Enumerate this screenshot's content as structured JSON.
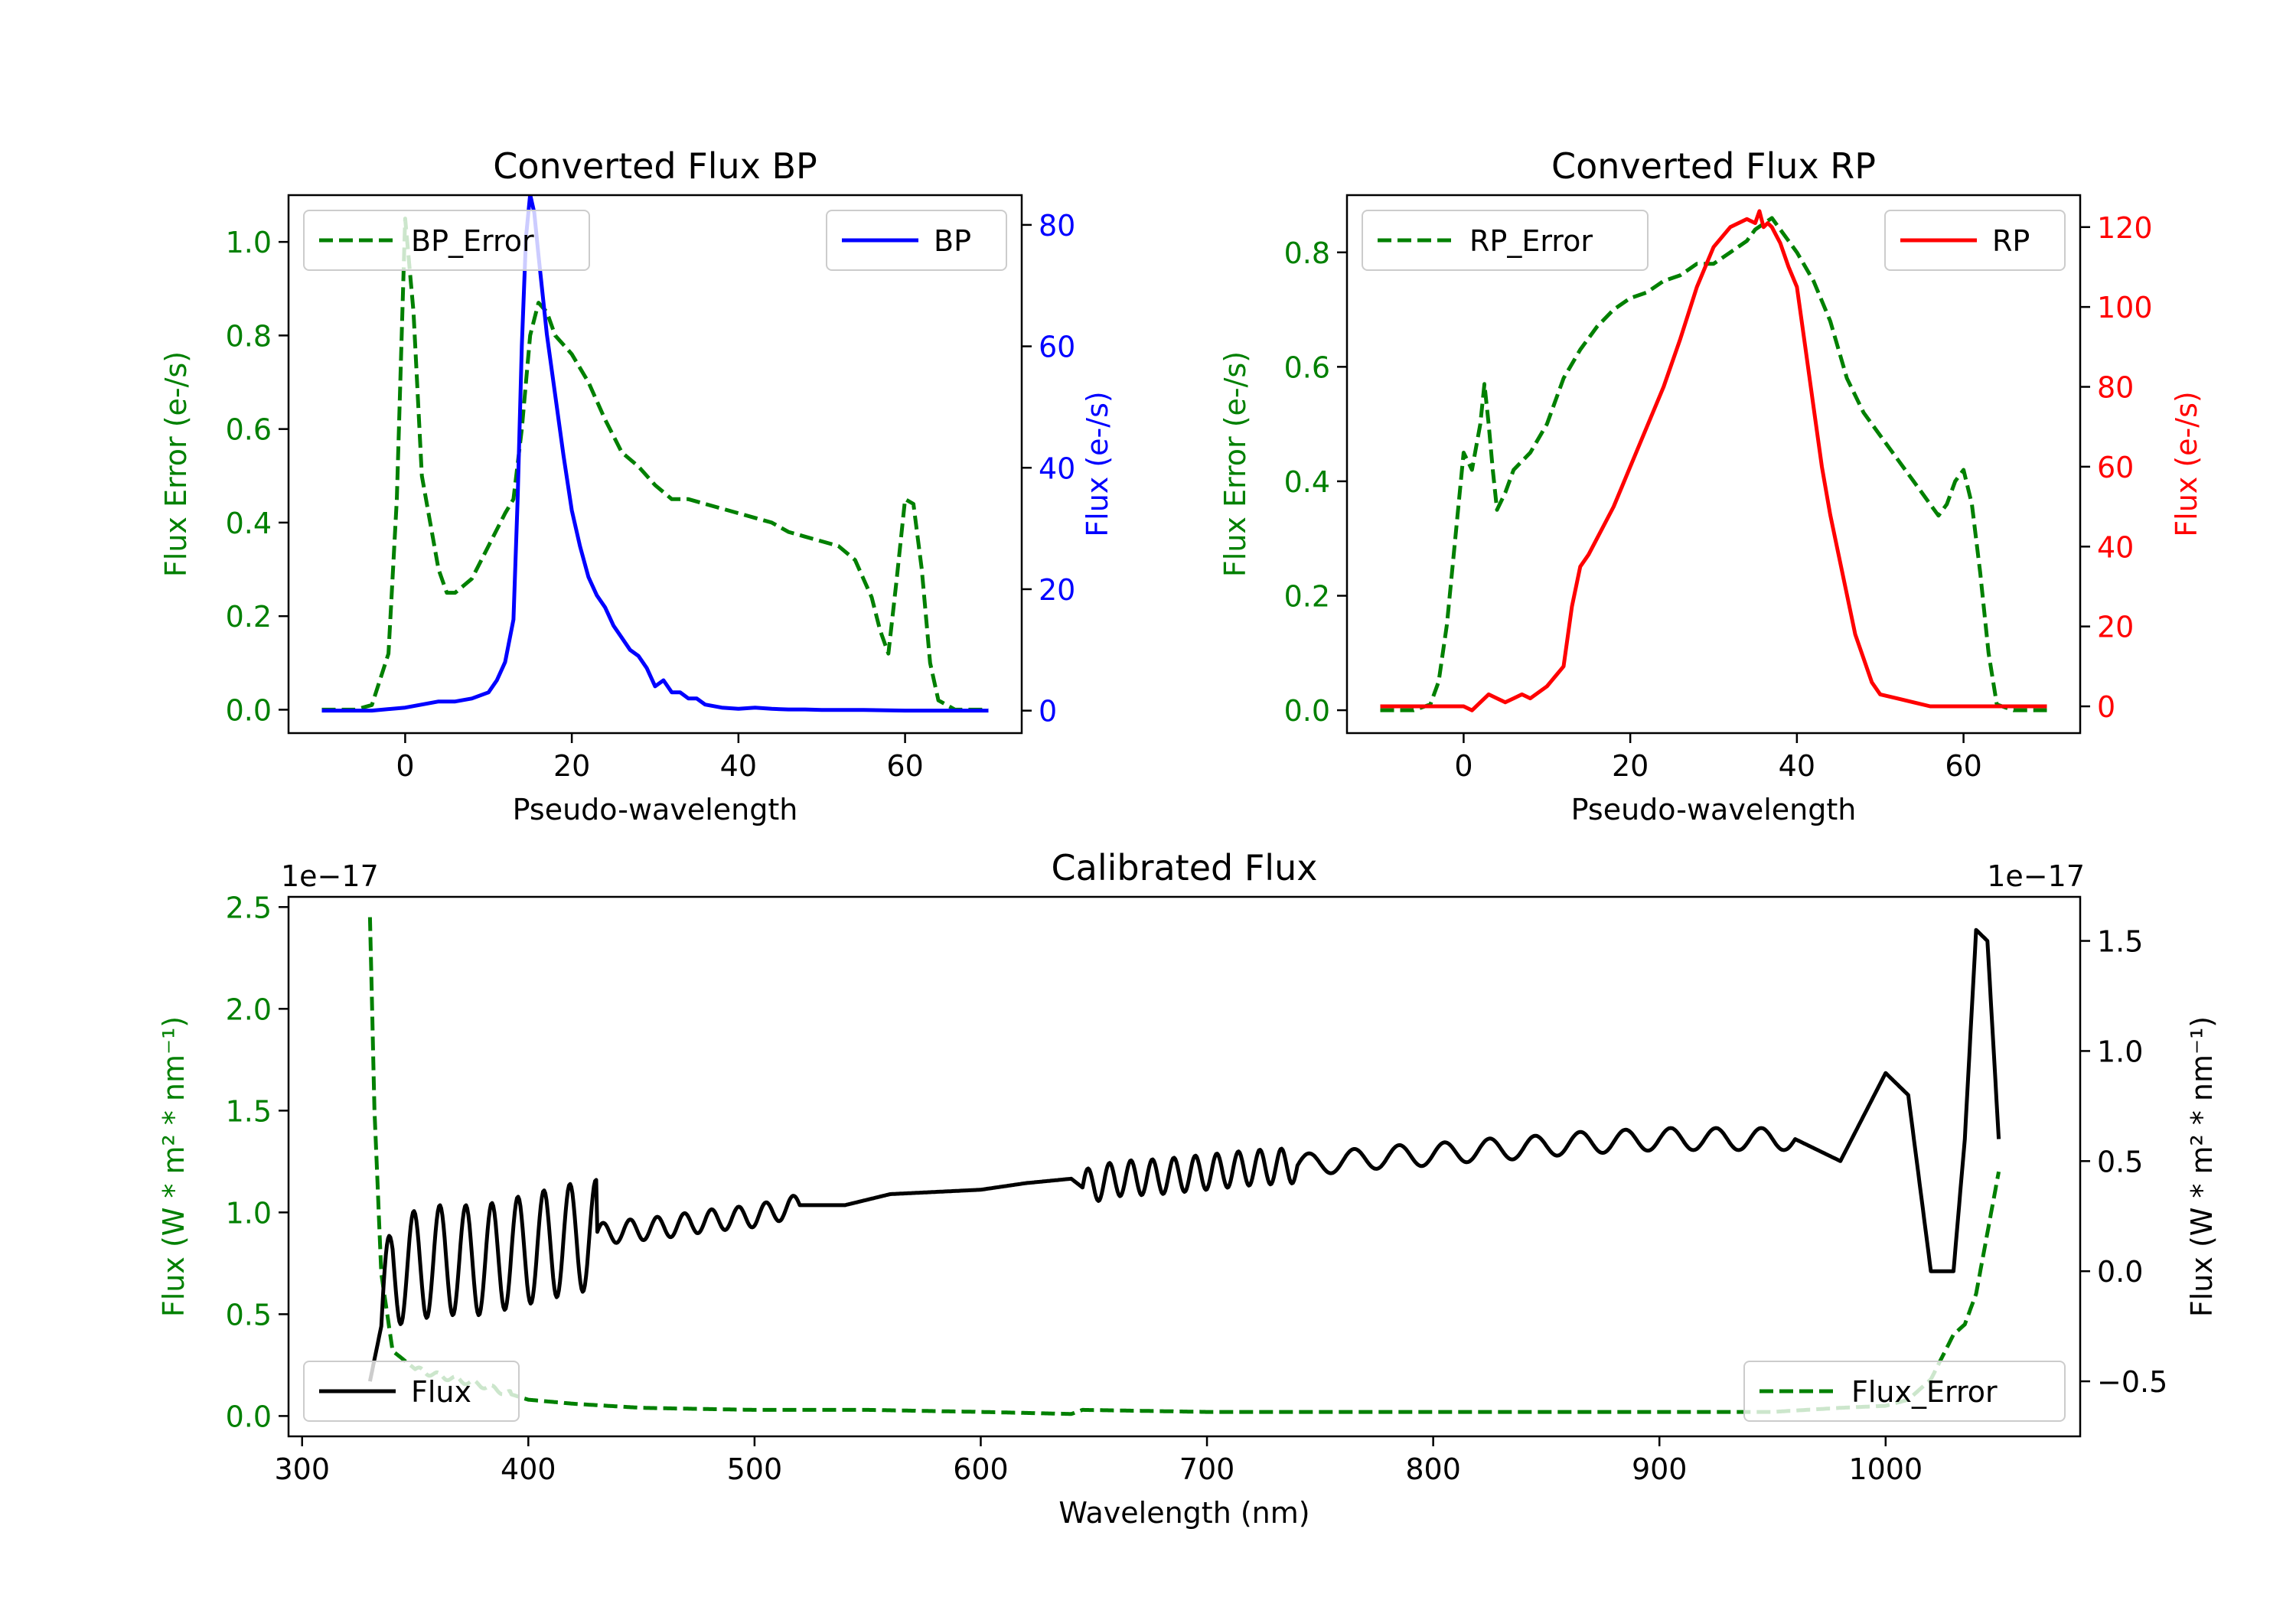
{
  "figure": {
    "background": "#ffffff"
  },
  "chart_data": [
    {
      "id": "bp",
      "type": "line",
      "title": "Converted Flux BP",
      "xlabel": "Pseudo-wavelength",
      "xlim": [
        -14,
        74
      ],
      "xticks": [
        0,
        20,
        40,
        60
      ],
      "left_axis": {
        "label": "Flux Error (e-/s)",
        "color": "#008000",
        "ylim": [
          -0.05,
          1.1
        ],
        "ticks": [
          0.0,
          0.2,
          0.4,
          0.6,
          0.8,
          1.0
        ],
        "tick_labels": [
          "0.0",
          "0.2",
          "0.4",
          "0.6",
          "0.8",
          "1.0"
        ]
      },
      "right_axis": {
        "label": "Flux (e-/s)",
        "color": "#0000ff",
        "ylim": [
          -3.7,
          84.9
        ],
        "ticks": [
          0,
          20,
          40,
          60,
          80
        ],
        "tick_labels": [
          "0",
          "20",
          "40",
          "60",
          "80"
        ]
      },
      "series": [
        {
          "name": "BP_Error",
          "axis": "left",
          "color": "#008000",
          "dash": true,
          "legend": "upper left",
          "x": [
            -10,
            -6,
            -4,
            -2,
            -1,
            0,
            1,
            2,
            3,
            4,
            5,
            6,
            8,
            10,
            12,
            13,
            14,
            15,
            16,
            17,
            18,
            19,
            20,
            22,
            24,
            26,
            28,
            30,
            32,
            34,
            36,
            38,
            40,
            42,
            44,
            46,
            48,
            50,
            52,
            54,
            56,
            57,
            58,
            59,
            60,
            61,
            62,
            63,
            64,
            66,
            68,
            70
          ],
          "y": [
            0.0,
            0.0,
            0.01,
            0.12,
            0.45,
            1.05,
            0.85,
            0.5,
            0.4,
            0.3,
            0.25,
            0.25,
            0.28,
            0.35,
            0.42,
            0.45,
            0.6,
            0.8,
            0.87,
            0.85,
            0.8,
            0.78,
            0.76,
            0.7,
            0.62,
            0.55,
            0.52,
            0.48,
            0.45,
            0.45,
            0.44,
            0.43,
            0.42,
            0.41,
            0.4,
            0.38,
            0.37,
            0.36,
            0.35,
            0.32,
            0.24,
            0.17,
            0.12,
            0.28,
            0.45,
            0.44,
            0.3,
            0.1,
            0.02,
            0.0,
            0.0,
            0.0
          ]
        },
        {
          "name": "BP",
          "axis": "right",
          "color": "#0000ff",
          "dash": false,
          "legend": "upper right",
          "x": [
            -10,
            -6,
            -4,
            0,
            2,
            4,
            6,
            8,
            10,
            11,
            12,
            13,
            13.5,
            14,
            14.5,
            15,
            15.5,
            16,
            17,
            18,
            19,
            20,
            21,
            22,
            23,
            24,
            25,
            26,
            27,
            28,
            29,
            30,
            31,
            32,
            33,
            34,
            35,
            36,
            38,
            40,
            42,
            44,
            46,
            48,
            50,
            55,
            60,
            65,
            70
          ],
          "y": [
            0,
            0,
            0,
            0.5,
            1,
            1.5,
            1.5,
            2,
            3,
            5,
            8,
            15,
            35,
            60,
            78,
            85,
            82,
            75,
            62,
            52,
            42,
            33,
            27,
            22,
            19,
            17,
            14,
            12,
            10,
            9,
            7,
            4,
            5,
            3,
            3,
            2,
            2,
            1,
            0.5,
            0.3,
            0.5,
            0.3,
            0.2,
            0.2,
            0.1,
            0.1,
            0,
            0,
            0
          ]
        }
      ]
    },
    {
      "id": "rp",
      "type": "line",
      "title": "Converted Flux RP",
      "xlabel": "Pseudo-wavelength",
      "xlim": [
        -14,
        74
      ],
      "xticks": [
        0,
        20,
        40,
        60
      ],
      "left_axis": {
        "label": "Flux Error (e-/s)",
        "color": "#008000",
        "ylim": [
          -0.04,
          0.9
        ],
        "ticks": [
          0.0,
          0.2,
          0.4,
          0.6,
          0.8
        ],
        "tick_labels": [
          "0.0",
          "0.2",
          "0.4",
          "0.6",
          "0.8"
        ]
      },
      "right_axis": {
        "label": "Flux (e-/s)",
        "color": "#ff0000",
        "ylim": [
          -6.7,
          128
        ],
        "ticks": [
          0,
          20,
          40,
          60,
          80,
          100,
          120
        ],
        "tick_labels": [
          "0",
          "20",
          "40",
          "60",
          "80",
          "100",
          "120"
        ]
      },
      "series": [
        {
          "name": "RP_Error",
          "axis": "left",
          "color": "#008000",
          "dash": true,
          "legend": "upper left",
          "x": [
            -10,
            -6,
            -4,
            -3,
            -2,
            -1,
            0,
            1,
            2,
            2.5,
            3,
            3.5,
            4,
            5,
            6,
            8,
            10,
            12,
            14,
            16,
            18,
            20,
            22,
            24,
            26,
            28,
            30,
            32,
            34,
            35,
            36,
            37,
            38,
            39,
            40,
            42,
            44,
            46,
            48,
            50,
            52,
            54,
            55,
            56,
            57,
            58,
            59,
            60,
            61,
            62,
            63,
            64,
            66,
            68,
            70
          ],
          "y": [
            0.0,
            0.0,
            0.01,
            0.05,
            0.15,
            0.3,
            0.45,
            0.42,
            0.5,
            0.57,
            0.5,
            0.42,
            0.35,
            0.38,
            0.42,
            0.45,
            0.5,
            0.58,
            0.63,
            0.67,
            0.7,
            0.72,
            0.73,
            0.75,
            0.76,
            0.78,
            0.78,
            0.8,
            0.82,
            0.84,
            0.85,
            0.86,
            0.84,
            0.82,
            0.8,
            0.75,
            0.68,
            0.58,
            0.52,
            0.48,
            0.44,
            0.4,
            0.38,
            0.36,
            0.34,
            0.36,
            0.4,
            0.42,
            0.36,
            0.24,
            0.1,
            0.01,
            0.0,
            0.0,
            0.0
          ]
        },
        {
          "name": "RP",
          "axis": "right",
          "color": "#ff0000",
          "dash": false,
          "legend": "upper right",
          "x": [
            -10,
            -6,
            -4,
            -2,
            0,
            1,
            2,
            3,
            4,
            5,
            6,
            7,
            8,
            10,
            12,
            13,
            14,
            15,
            16,
            17,
            18,
            19,
            20,
            21,
            22,
            24,
            26,
            28,
            30,
            32,
            34,
            35,
            35.5,
            36,
            36.5,
            37,
            37.5,
            38,
            39,
            40,
            41,
            42,
            43,
            44,
            45,
            46,
            47,
            48,
            49,
            50,
            52,
            54,
            56,
            58,
            60,
            65,
            70
          ],
          "y": [
            0,
            0,
            0,
            0,
            0,
            -1,
            1,
            3,
            2,
            1,
            2,
            3,
            2,
            5,
            10,
            25,
            35,
            38,
            42,
            46,
            50,
            55,
            60,
            65,
            70,
            80,
            92,
            105,
            115,
            120,
            122,
            121,
            124,
            120,
            121,
            120,
            118,
            116,
            110,
            105,
            90,
            75,
            60,
            48,
            38,
            28,
            18,
            12,
            6,
            3,
            2,
            1,
            0,
            0,
            0,
            0,
            0
          ]
        }
      ]
    },
    {
      "id": "cal",
      "type": "line",
      "title": "Calibrated Flux",
      "xlabel": "Wavelength (nm)",
      "xlim": [
        294,
        1086
      ],
      "xticks": [
        300,
        400,
        500,
        600,
        700,
        800,
        900,
        1000
      ],
      "left_axis": {
        "label": "Flux (W * m² * nm⁻¹)",
        "color": "#008000",
        "ylim": [
          -0.1,
          2.55
        ],
        "offset": "1e−17",
        "ticks": [
          0.0,
          0.5,
          1.0,
          1.5,
          2.0,
          2.5
        ],
        "tick_labels": [
          "0.0",
          "0.5",
          "1.0",
          "1.5",
          "2.0",
          "2.5"
        ]
      },
      "right_axis": {
        "label": "Flux (W * m² * nm⁻¹)",
        "color": "#000000",
        "ylim": [
          -0.75,
          1.7
        ],
        "offset": "1e−17",
        "ticks": [
          -0.5,
          0.0,
          0.5,
          1.0,
          1.5
        ],
        "tick_labels": [
          "−0.5",
          "0.0",
          "0.5",
          "1.0",
          "1.5"
        ]
      },
      "series": [
        {
          "name": "Flux_Error",
          "axis": "left",
          "color": "#008000",
          "dash": true,
          "legend": "lower right",
          "x": [
            330,
            332,
            335,
            340,
            350,
            360,
            380,
            400,
            420,
            450,
            500,
            550,
            600,
            640,
            645,
            700,
            800,
            900,
            950,
            980,
            1000,
            1010,
            1020,
            1030,
            1035,
            1040,
            1045,
            1050
          ],
          "y": [
            2.45,
            1.5,
            0.7,
            0.32,
            0.23,
            0.2,
            0.15,
            0.08,
            0.06,
            0.04,
            0.03,
            0.03,
            0.02,
            0.01,
            0.03,
            0.02,
            0.02,
            0.02,
            0.02,
            0.04,
            0.05,
            0.08,
            0.18,
            0.4,
            0.45,
            0.6,
            0.9,
            1.2
          ],
          "mods": [
            {
              "from": 350,
              "to": 392,
              "amp": 0.014,
              "period": 8
            }
          ]
        },
        {
          "name": "Flux",
          "axis": "right",
          "color": "#000000",
          "dash": false,
          "legend": "lower left",
          "x": [
            330,
            340,
            360,
            380,
            400,
            420,
            440,
            460,
            480,
            500,
            520,
            540,
            560,
            600,
            620,
            640,
            645,
            660,
            680,
            700,
            720,
            740,
            760,
            780,
            800,
            820,
            840,
            860,
            880,
            900,
            920,
            940,
            960,
            980,
            1000,
            1010,
            1020,
            1030,
            1035,
            1040,
            1045,
            1050
          ],
          "y": [
            -0.5,
            0.0,
            0.05,
            0.05,
            0.1,
            0.15,
            0.18,
            0.2,
            0.23,
            0.25,
            0.3,
            0.3,
            0.35,
            0.37,
            0.4,
            0.42,
            0.38,
            0.42,
            0.43,
            0.45,
            0.47,
            0.48,
            0.5,
            0.52,
            0.53,
            0.55,
            0.56,
            0.58,
            0.59,
            0.6,
            0.6,
            0.6,
            0.6,
            0.5,
            0.9,
            0.8,
            0.0,
            0.0,
            0.6,
            1.55,
            1.5,
            0.6
          ],
          "mods": [
            {
              "from": 335,
              "to": 430,
              "amp": 0.25,
              "period": 11.5
            },
            {
              "from": 430,
              "to": 520,
              "amp": 0.05,
              "period": 12
            },
            {
              "from": 645,
              "to": 740,
              "amp": 0.08,
              "period": 9.5
            },
            {
              "from": 740,
              "to": 960,
              "amp": 0.05,
              "period": 20
            }
          ]
        }
      ]
    }
  ]
}
